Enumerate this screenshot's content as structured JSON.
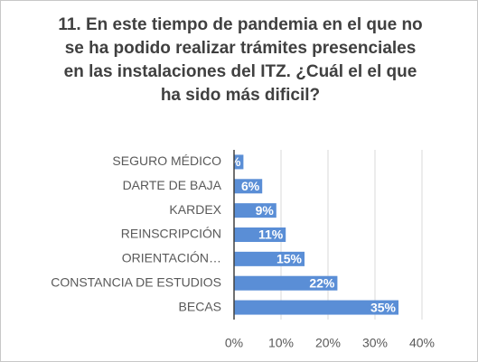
{
  "chart_data": {
    "type": "barh",
    "title": "11. En este tiempo de pandemia en el que no se ha podido realizar trámites presenciales en las instalaciones del ITZ. ¿Cuál el el que ha sido más dificil?",
    "categories": [
      "SEGURO MÉDICO",
      "DARTE DE BAJA",
      "KARDEX",
      "REINSCRIPCIÓN",
      "ORIENTACIÓN…",
      "CONSTANCIA DE ESTUDIOS",
      "BECAS"
    ],
    "values": [
      2,
      6,
      9,
      11,
      15,
      22,
      35
    ],
    "value_labels": [
      "2%",
      "6%",
      "9%",
      "11%",
      "15%",
      "22%",
      "35%"
    ],
    "color": "#5a8ed6",
    "xlim": [
      0,
      40
    ],
    "xticks": [
      {
        "value": 0,
        "label": "0%"
      },
      {
        "value": 10,
        "label": "10%"
      },
      {
        "value": 20,
        "label": "20%"
      },
      {
        "value": 30,
        "label": "30%"
      },
      {
        "value": 40,
        "label": "40%"
      }
    ],
    "grid": true
  }
}
